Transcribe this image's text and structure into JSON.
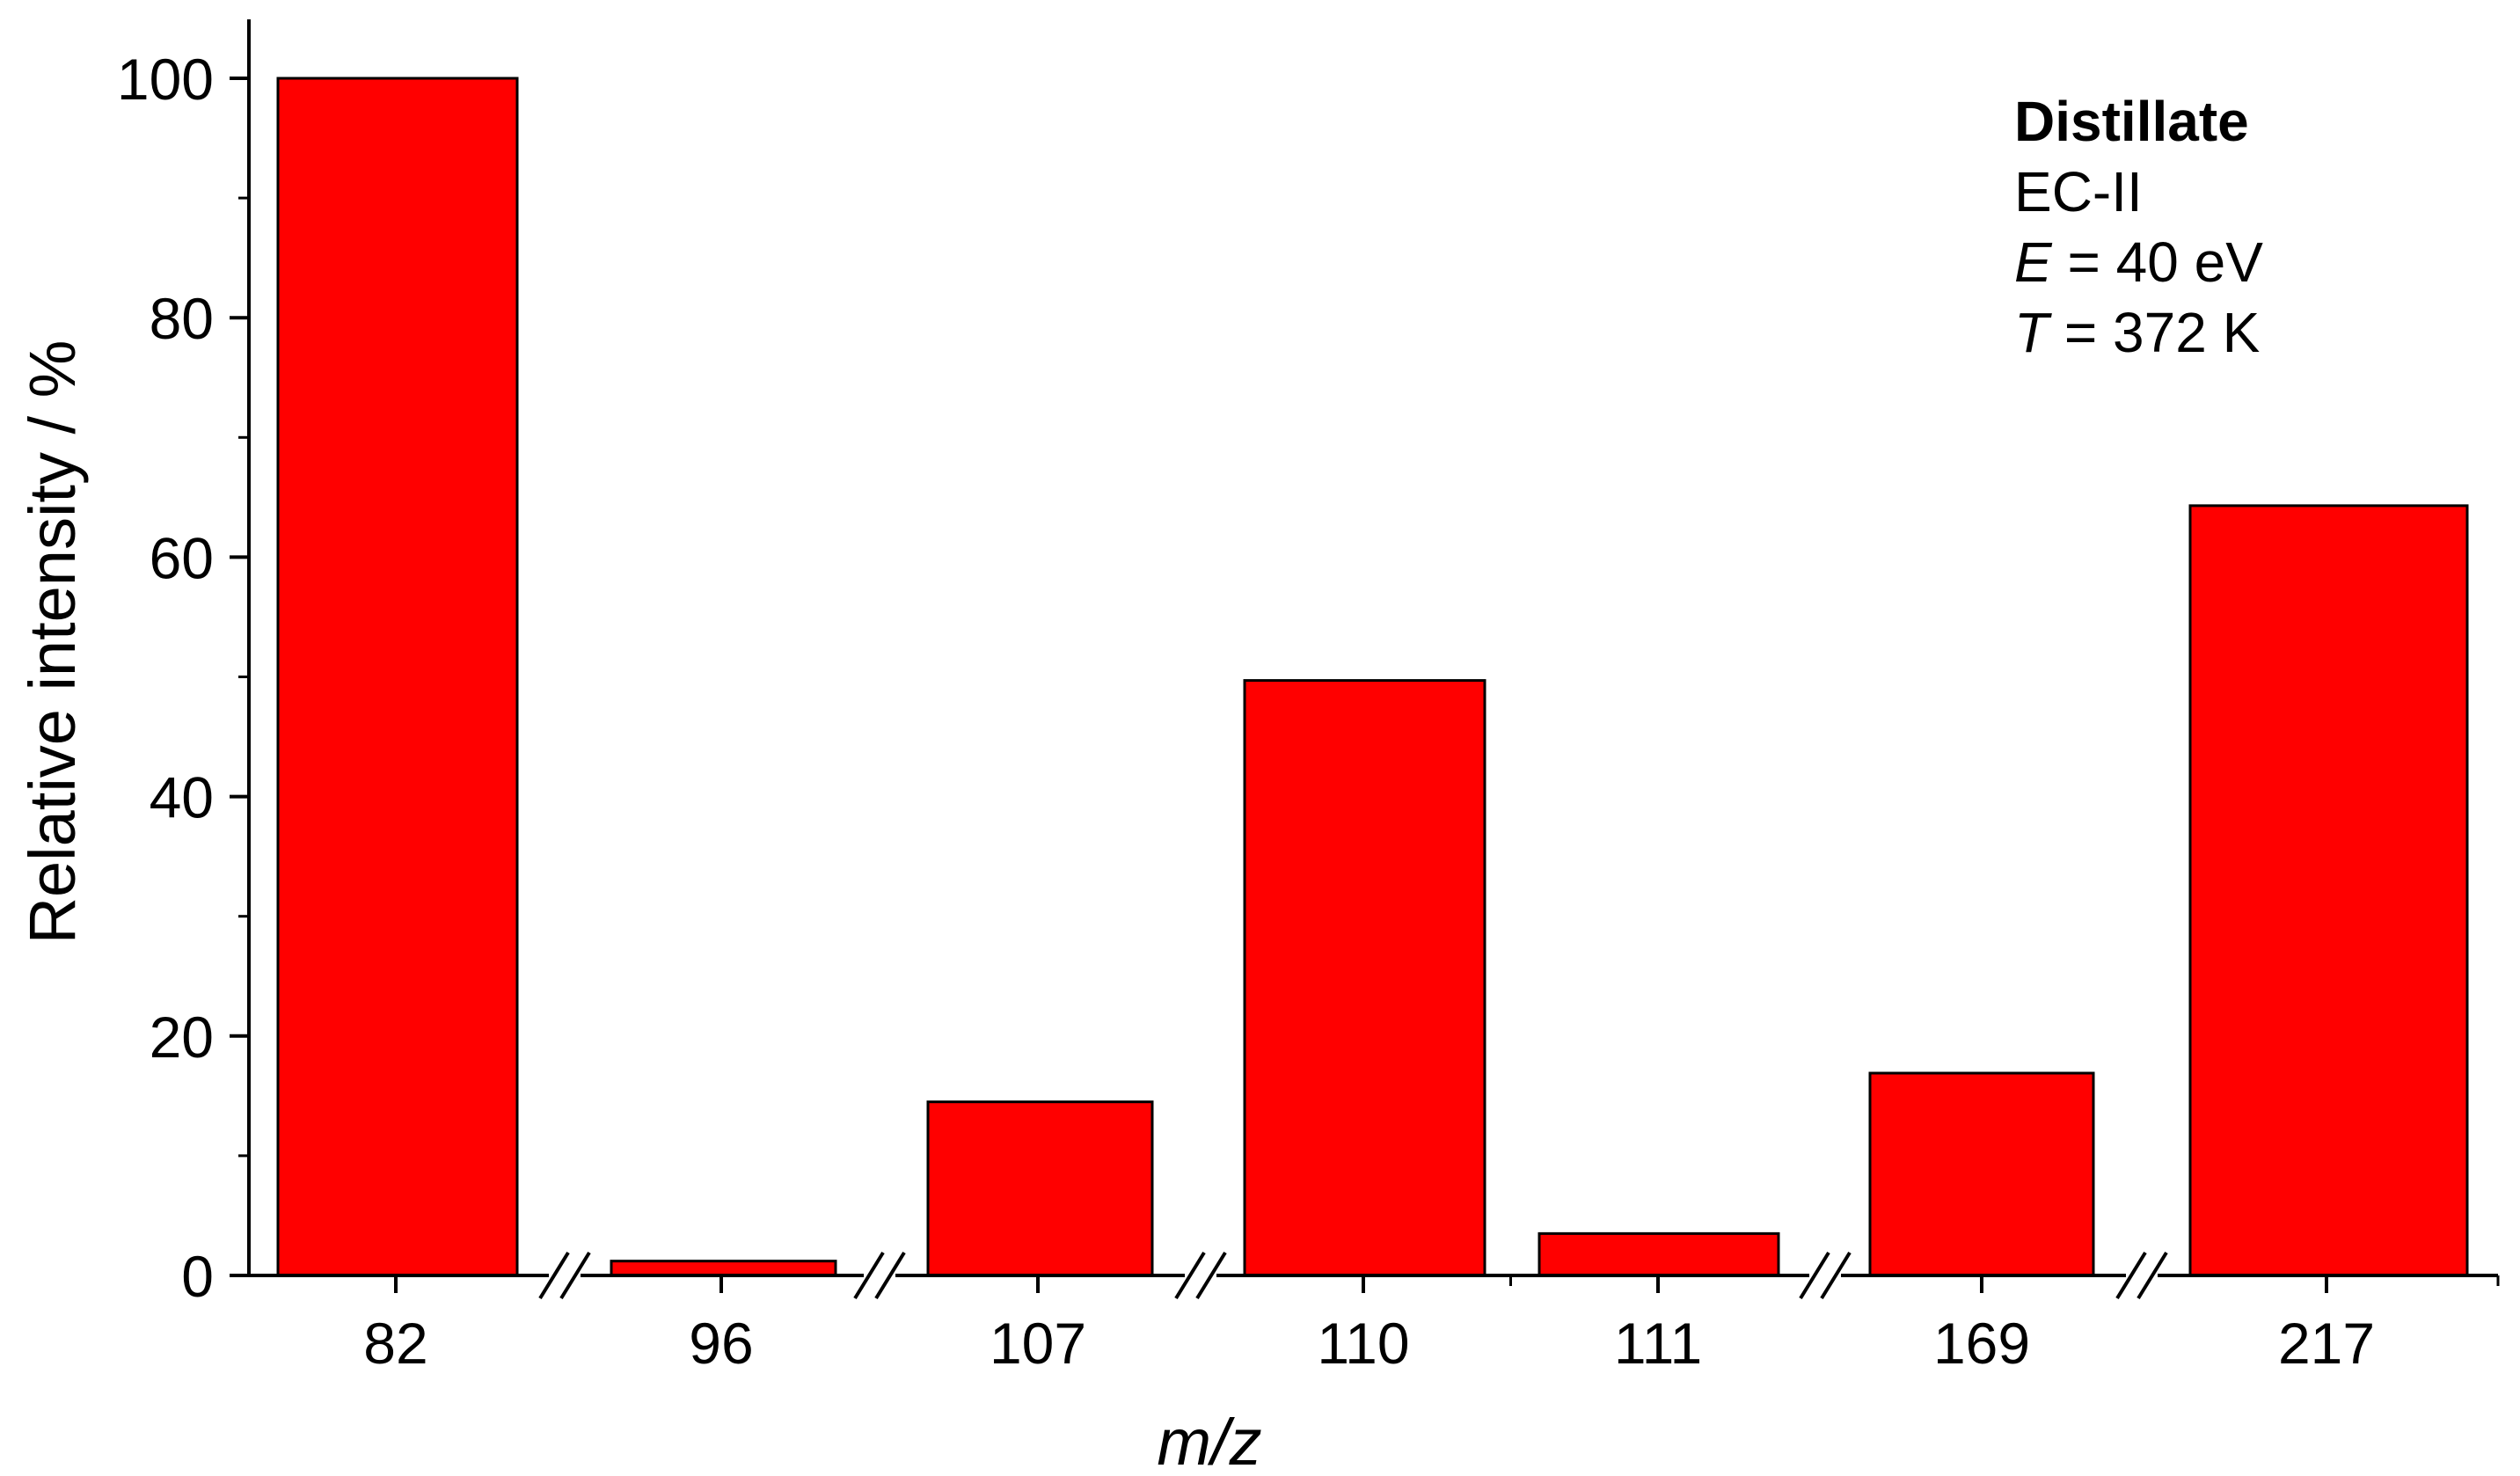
{
  "chart_data": {
    "type": "bar",
    "categories": [
      "82",
      "96",
      "107",
      "110",
      "111",
      "169",
      "217"
    ],
    "values": [
      100,
      1.2,
      14.5,
      49.7,
      3.5,
      16.9,
      64.3
    ],
    "bar_color": "#ff0000",
    "xlabel": "m/z",
    "ylabel": "Relative intensity / %",
    "ylim": [
      0,
      100
    ],
    "yticks": [
      0,
      20,
      40,
      60,
      80,
      100
    ],
    "axis_breaks_after": [
      "82",
      "96",
      "107",
      "110",
      "169"
    ],
    "annotations": {
      "title": "Distillate",
      "line1": "EC-II",
      "line2_symbol": "E",
      "line2_rest": " = 40 eV",
      "line3_symbol": "T",
      "line3_rest": " = 372 K"
    }
  }
}
